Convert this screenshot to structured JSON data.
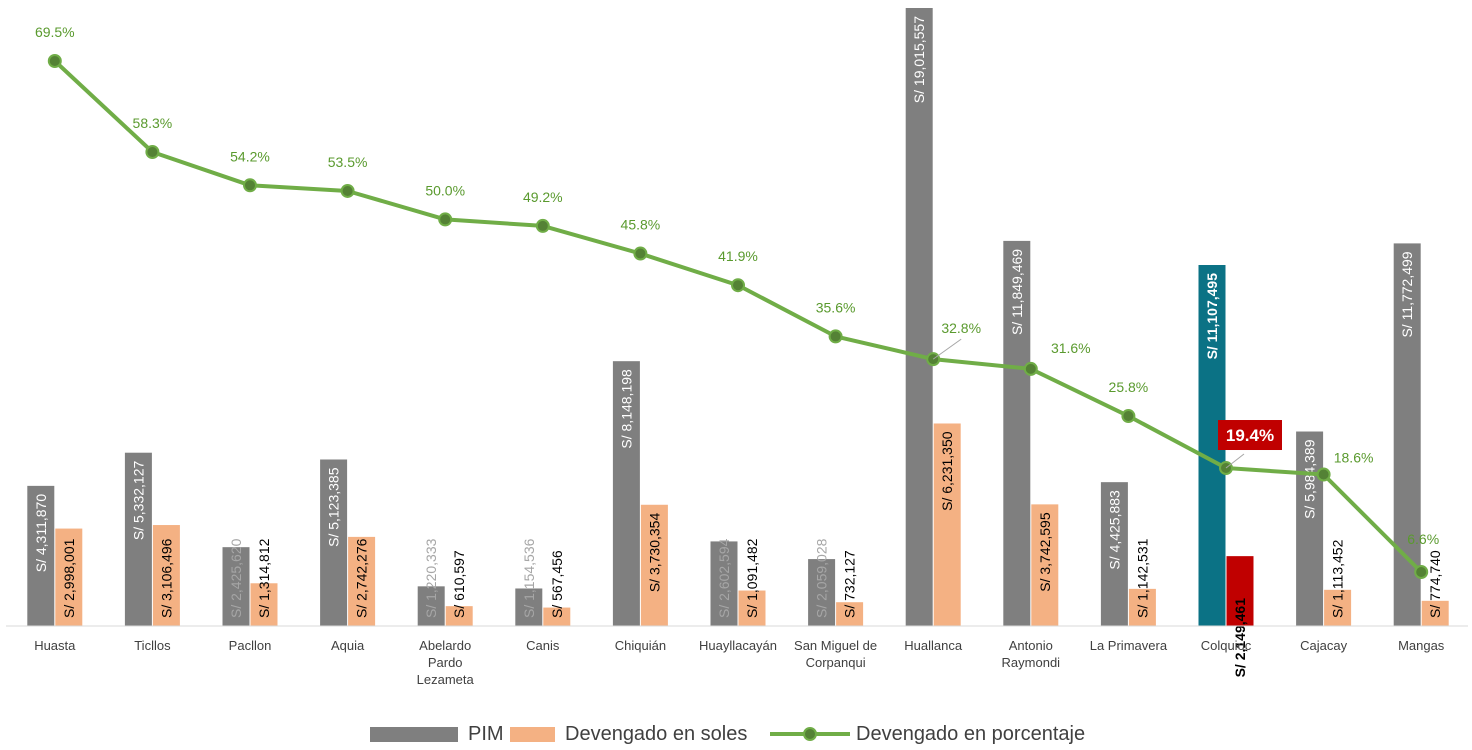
{
  "chart_data": {
    "type": "bar",
    "categories": [
      "Huasta",
      "Ticllos",
      "Pacllon",
      "Aquia",
      "Abelardo Pardo Lezameta",
      "Canis",
      "Chiquián",
      "Huayllacayán",
      "San Miguel de Corpanqui",
      "Huallanca",
      "Antonio Raymondi",
      "La Primavera",
      "Colquioc",
      "Cajacay",
      "Mangas"
    ],
    "series": [
      {
        "name": "PIM",
        "kind": "bar",
        "color": "#7f7f7f",
        "values": [
          4311870,
          5332127,
          2425620,
          5123385,
          1220333,
          1154536,
          8148198,
          2602594,
          2059028,
          19015557,
          11849469,
          4425883,
          11107495,
          5984389,
          11772499
        ],
        "labels": [
          "S/ 4,311,870",
          "S/ 5,332,127",
          "S/ 2,425,620",
          "S/ 5,123,385",
          "S/ 1,220,333",
          "S/ 1,154,536",
          "S/ 8,148,198",
          "S/ 2,602,594",
          "S/ 2,059,028",
          "S/ 19,015,557",
          "S/ 11,849,469",
          "S/ 4,425,883",
          "S/ 11,107,495",
          "S/ 5,984,389",
          "S/ 11,772,499"
        ]
      },
      {
        "name": "Devengado en soles",
        "kind": "bar",
        "color": "#f4b183",
        "values": [
          2998001,
          3106496,
          1314812,
          2742276,
          610597,
          567456,
          3730354,
          1091482,
          732127,
          6231350,
          3742595,
          1142531,
          2149461,
          1113452,
          774740
        ],
        "labels": [
          "S/ 2,998,001",
          "S/ 3,106,496",
          "S/ 1,314,812",
          "S/ 2,742,276",
          "S/ 610,597",
          "S/ 567,456",
          "S/ 3,730,354",
          "S/ 1,091,482",
          "S/ 732,127",
          "S/ 6,231,350",
          "S/ 3,742,595",
          "S/ 1,142,531",
          "S/ 2,149,461",
          "S/ 1,113,452",
          "S/ 774,740"
        ]
      },
      {
        "name": "Devengado en porcentaje",
        "kind": "line",
        "color": "#70ad47",
        "marker_color": "#548235",
        "values": [
          69.5,
          58.3,
          54.2,
          53.5,
          50.0,
          49.2,
          45.8,
          41.9,
          35.6,
          32.8,
          31.6,
          25.8,
          19.4,
          18.6,
          6.6
        ],
        "labels": [
          "69.5%",
          "58.3%",
          "54.2%",
          "53.5%",
          "50.0%",
          "49.2%",
          "45.8%",
          "41.9%",
          "35.6%",
          "32.8%",
          "31.6%",
          "25.8%",
          "19.4%",
          "18.6%",
          "6.6%"
        ]
      }
    ],
    "highlight": {
      "category": "Colquioc",
      "pim_color": "#0b7285",
      "devengado_color": "#c00000",
      "percent_label_bg": "#c00000"
    },
    "bar_ylim": [
      0,
      19015557
    ],
    "pct_ylim": [
      0,
      72
    ],
    "legend_position": "bottom",
    "grid": false,
    "title": "",
    "xlabel": "",
    "ylabel": ""
  },
  "legend": {
    "items": [
      {
        "label": "PIM"
      },
      {
        "label": "Devengado en soles"
      },
      {
        "label": "Devengado en porcentaje"
      }
    ]
  }
}
